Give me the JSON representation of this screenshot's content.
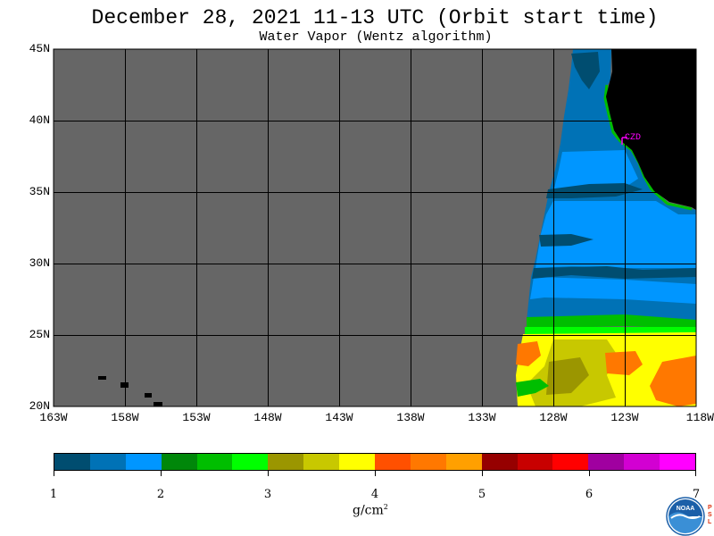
{
  "title": "December 28, 2021  11-13 UTC  (Orbit start time)",
  "subtitle": "Water Vapor (Wentz algorithm)",
  "map": {
    "lat_labels": [
      "45N",
      "40N",
      "35N",
      "30N",
      "25N",
      "20N"
    ],
    "lon_labels": [
      "163W",
      "158W",
      "153W",
      "148W",
      "143W",
      "138W",
      "133W",
      "128W",
      "123W",
      "118W"
    ],
    "lat_range": [
      20,
      45
    ],
    "lon_range": [
      -163,
      -118
    ],
    "grid_step_deg": 5,
    "station_label": "CZD",
    "colors": {
      "no_data": "#666666",
      "land": "#000000",
      "grid": "#000000",
      "station": "#ff00ff"
    }
  },
  "colorbar": {
    "colors": [
      "#004d70",
      "#0072b6",
      "#0096ff",
      "#00870a",
      "#00be00",
      "#00ff00",
      "#9b9600",
      "#c8c800",
      "#ffff00",
      "#ff5000",
      "#ff7800",
      "#ffa000",
      "#960000",
      "#c80000",
      "#ff0000",
      "#a000a0",
      "#d200d2",
      "#ff00ff"
    ],
    "tick_labels": [
      "1",
      "2",
      "3",
      "4",
      "5",
      "6",
      "7"
    ],
    "range": [
      1,
      7
    ],
    "unit_base": "g/cm",
    "unit_exp": "2"
  },
  "logo": {
    "text": "NOAA",
    "side_text": [
      "P",
      "S",
      "L"
    ]
  }
}
